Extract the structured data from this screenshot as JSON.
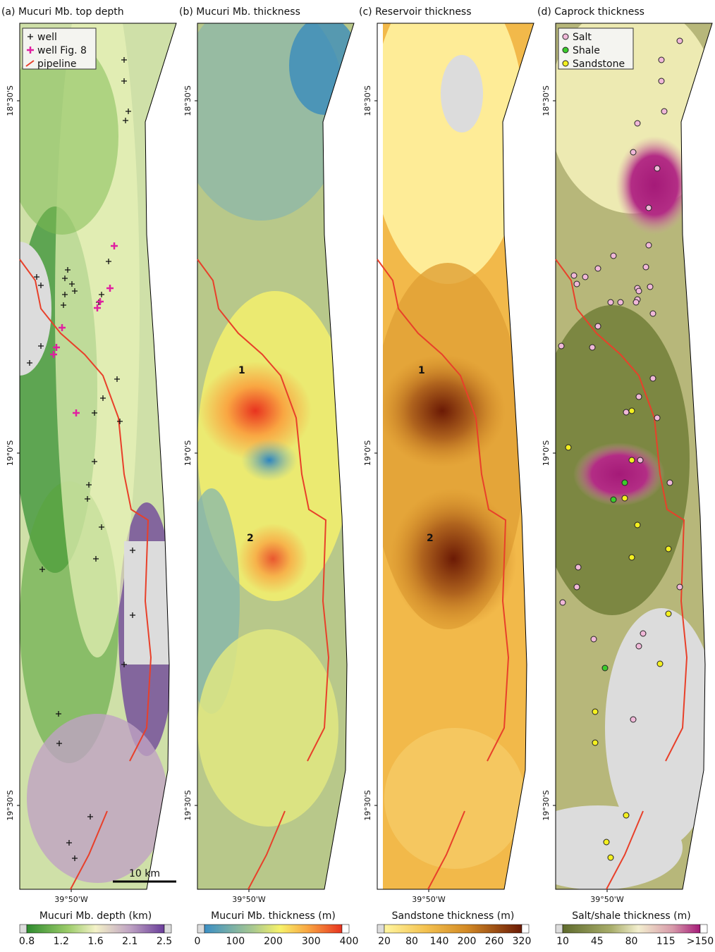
{
  "panels": [
    {
      "title": "(a) Mucuri Mb. top depth",
      "y_labels": [
        "18°30'S",
        "19°0'S",
        "19°30'S"
      ],
      "x_label": "39°50'W",
      "legend": [
        "well",
        "well Fig. 8",
        "pipeline"
      ],
      "scale_bar": "10 km",
      "colorbar": {
        "title": "Mucuri Mb. depth (km)",
        "ticks": [
          "0.8",
          "1.2",
          "1.6",
          "2.1",
          "2.5"
        ]
      }
    },
    {
      "title": "(b) Mucuri Mb. thickness",
      "y_labels": [
        "18°30'S",
        "19°0'S",
        "19°30'S"
      ],
      "x_label": "39°50'W",
      "annotations": [
        "1",
        "2"
      ],
      "colorbar": {
        "title": "Mucuri Mb. thickness (m)",
        "ticks": [
          "0",
          "100",
          "200",
          "300",
          "400"
        ]
      }
    },
    {
      "title": "(c)  Reservoir thickness",
      "y_labels": [
        "18°30'S",
        "19°0'S",
        "19°30'S"
      ],
      "x_label": "39°50'W",
      "annotations": [
        "1",
        "2"
      ],
      "colorbar": {
        "title": "Sandstone thickness (m)",
        "ticks": [
          "20",
          "80",
          "140",
          "200",
          "260",
          "320"
        ]
      }
    },
    {
      "title": "(d)  Caprock thickness",
      "y_labels": [
        "18°30'S",
        "19°0'S",
        "19°30'S"
      ],
      "x_label": "39°50'W",
      "legend": [
        "Salt",
        "Shale",
        "Sandstone"
      ],
      "colorbar": {
        "title": "Salt/shale thickness (m)",
        "ticks": [
          "10",
          "45",
          "80",
          "115",
          ">150"
        ]
      }
    }
  ]
}
